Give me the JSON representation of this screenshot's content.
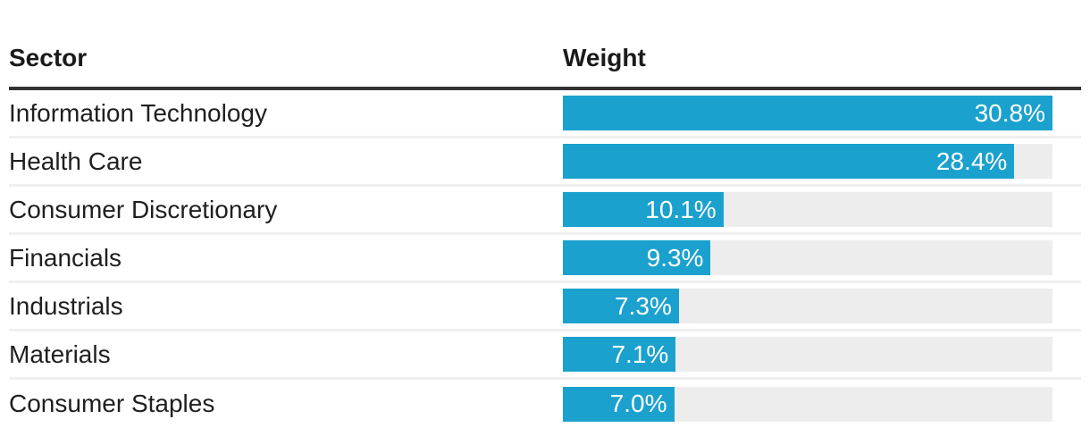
{
  "header": {
    "sector_label": "Sector",
    "weight_label": "Weight"
  },
  "colors": {
    "bar": "#1ba1ce",
    "track": "#ededed",
    "header_rule": "#333333",
    "row_divider": "#f0f0f0",
    "label_text": "#1f1f1f",
    "value_text": "#ffffff"
  },
  "chart_data": {
    "type": "bar",
    "orientation": "horizontal",
    "title": "",
    "xlabel": "Weight",
    "ylabel": "Sector",
    "categories": [
      "Information Technology",
      "Health Care",
      "Consumer Discretionary",
      "Financials",
      "Industrials",
      "Materials",
      "Consumer Staples"
    ],
    "values": [
      30.8,
      28.4,
      10.1,
      9.3,
      7.3,
      7.1,
      7.0
    ],
    "value_labels": [
      "30.8%",
      "28.4%",
      "10.1%",
      "9.3%",
      "7.3%",
      "7.1%",
      "7.0%"
    ],
    "max_value": 30.8,
    "xlim": [
      0,
      30.8
    ],
    "grid": false,
    "legend": false
  }
}
